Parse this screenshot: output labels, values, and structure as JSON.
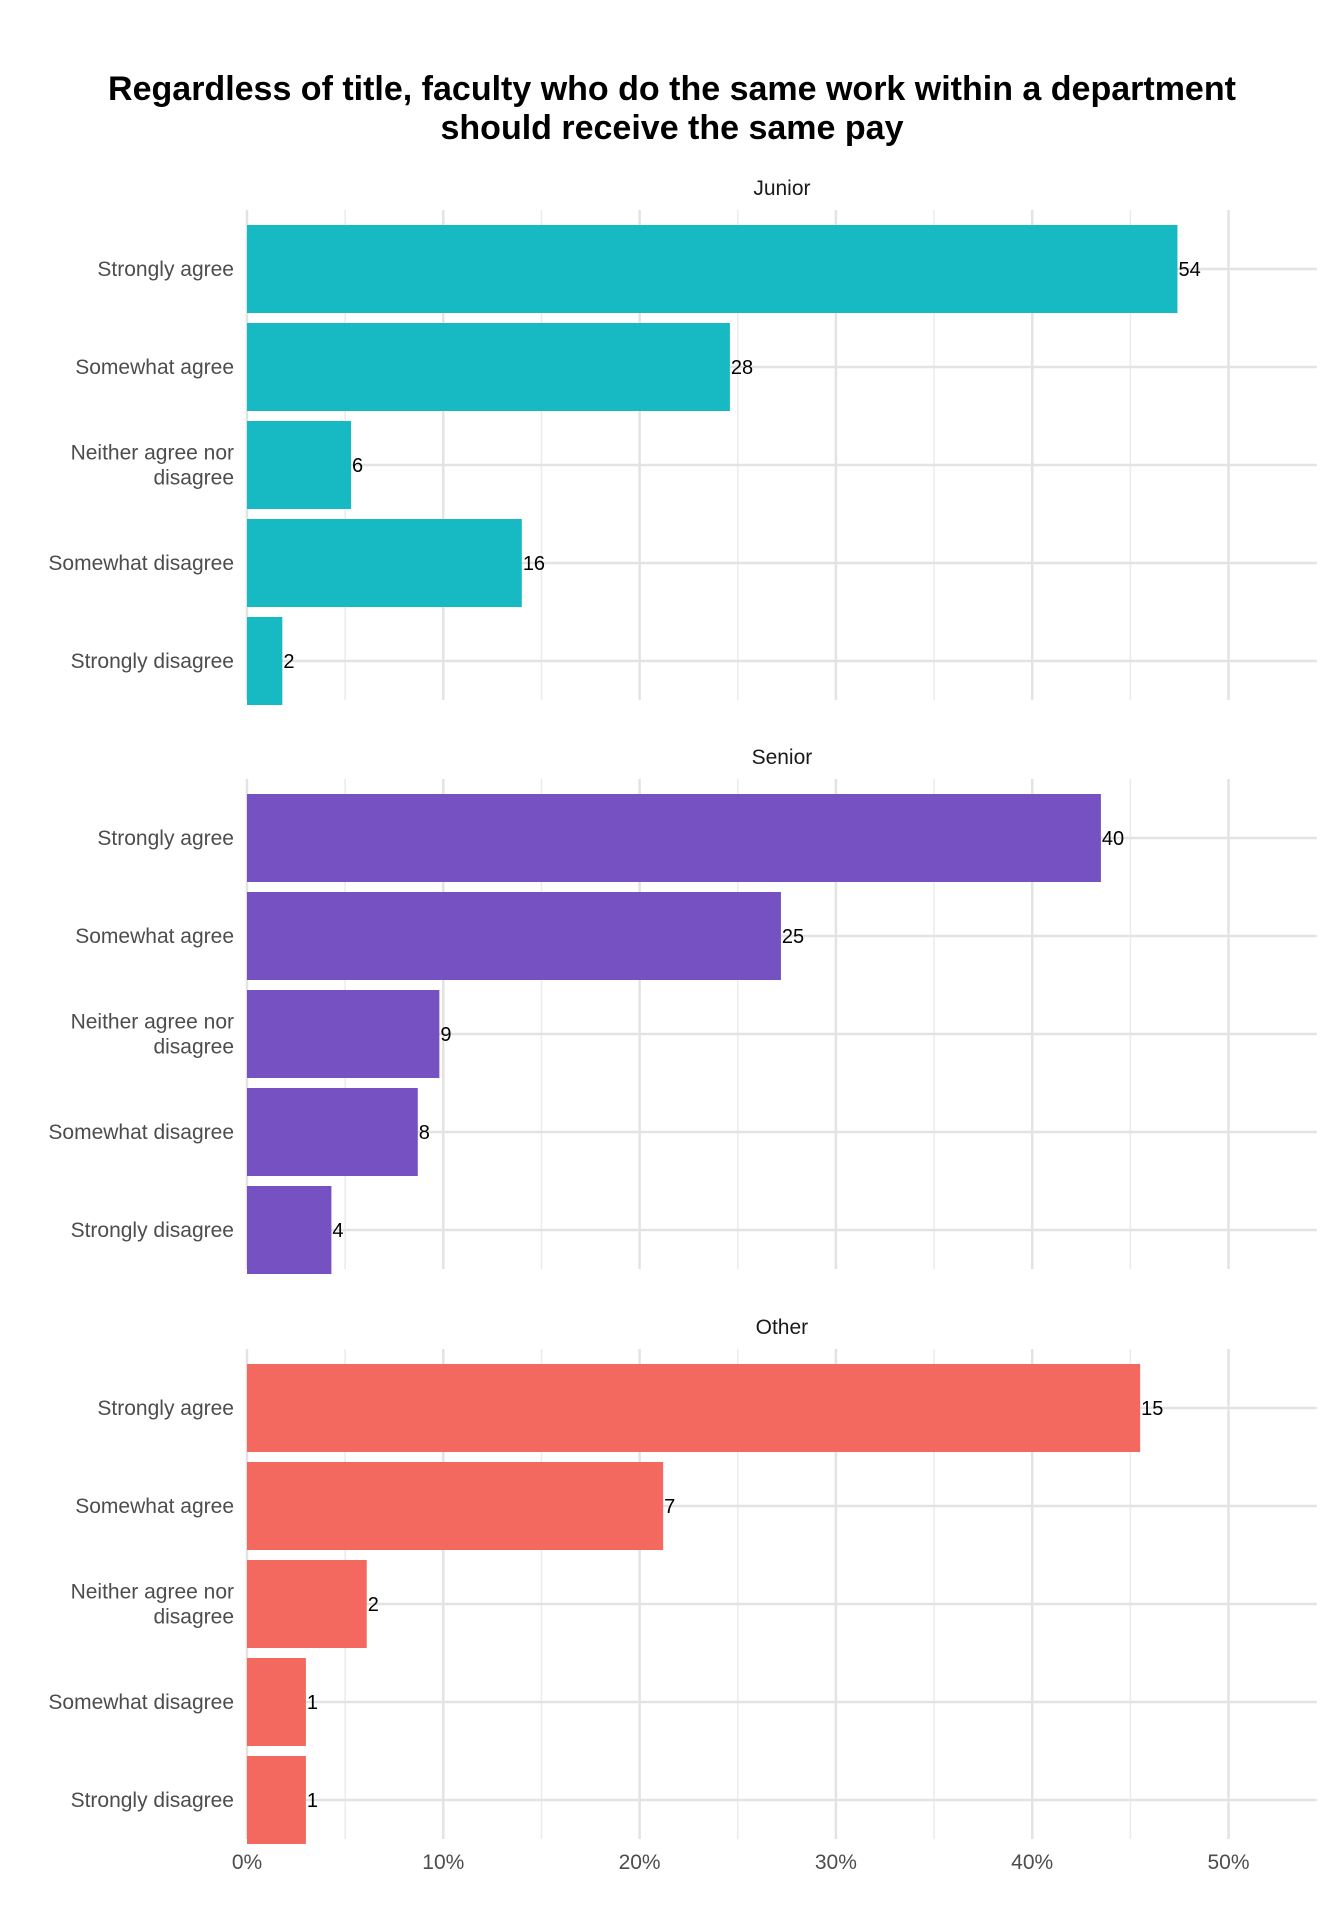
{
  "chart_data": {
    "type": "bar",
    "orientation": "horizontal",
    "title_lines": [
      "Regardless of title, faculty who do the same work within a department",
      "should receive the same pay"
    ],
    "categories": [
      "Strongly agree",
      "Somewhat agree",
      "Neither agree nor disagree",
      "Somewhat disagree",
      "Strongly disagree"
    ],
    "category_label_lines": [
      [
        "Strongly agree"
      ],
      [
        "Somewhat agree"
      ],
      [
        "Neither agree nor",
        "disagree"
      ],
      [
        "Somewhat disagree"
      ],
      [
        "Strongly disagree"
      ]
    ],
    "x_axis": {
      "min": 0,
      "max": 0.545,
      "ticks": [
        0,
        0.1,
        0.2,
        0.3,
        0.4,
        0.5
      ],
      "tick_labels": [
        "0%",
        "10%",
        "20%",
        "30%",
        "40%",
        "50%"
      ],
      "minor_ticks": [
        0.05,
        0.15,
        0.25,
        0.35,
        0.45
      ]
    },
    "grid": true,
    "legend": "none",
    "series": [
      {
        "name": "Junior",
        "color": "#17BAC2",
        "counts": [
          54,
          28,
          6,
          16,
          2
        ],
        "percent": [
          47.4,
          24.6,
          5.3,
          14.0,
          1.8
        ]
      },
      {
        "name": "Senior",
        "color": "#7551C2",
        "counts": [
          40,
          25,
          9,
          8,
          4
        ],
        "percent": [
          43.5,
          27.2,
          9.8,
          8.7,
          4.3
        ]
      },
      {
        "name": "Other",
        "color": "#F4695F",
        "counts": [
          15,
          7,
          2,
          1,
          1
        ],
        "percent": [
          45.5,
          21.2,
          6.1,
          3.0,
          3.0
        ]
      }
    ]
  }
}
